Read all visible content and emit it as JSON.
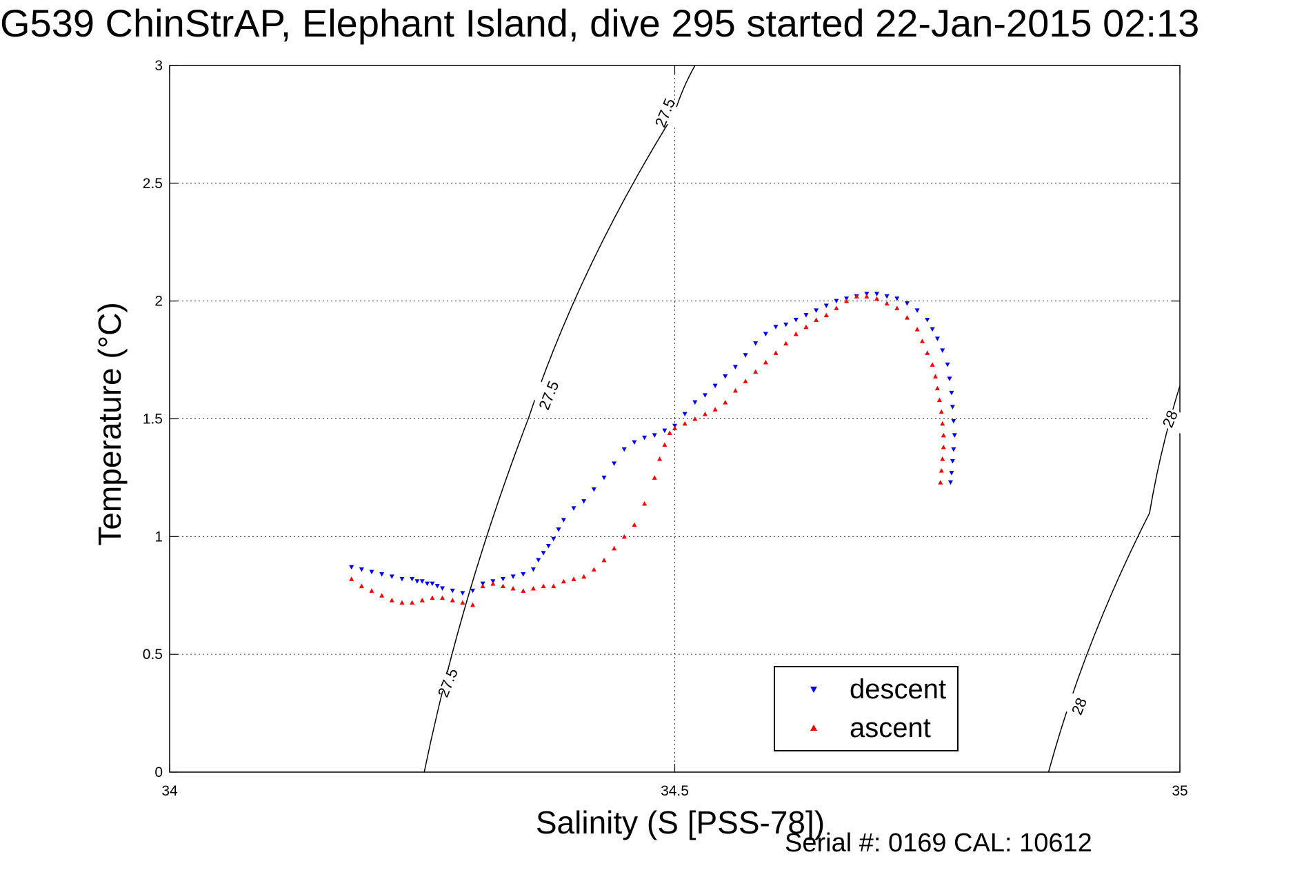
{
  "chart_data": {
    "type": "scatter",
    "title": "G539 ChinStrAP, Elephant Island, dive 295 started 22-Jan-2015 02:13",
    "xlabel": "Salinity (S [PSS-78])",
    "ylabel": "Temperature (°C)",
    "xlim": [
      34,
      35
    ],
    "ylim": [
      0,
      3
    ],
    "xticks": [
      "34",
      "34.5",
      "35"
    ],
    "yticks": [
      "0",
      "0.5",
      "1",
      "1.5",
      "2",
      "2.5",
      "3"
    ],
    "grid": true,
    "legend_position": "bottom-right",
    "footer": "Serial #: 0169 CAL: 10612",
    "series": [
      {
        "name": "descent",
        "color": "#0000ff",
        "marker": "down-triangle",
        "points": [
          [
            34.18,
            0.87
          ],
          [
            34.19,
            0.86
          ],
          [
            34.2,
            0.85
          ],
          [
            34.21,
            0.84
          ],
          [
            34.22,
            0.83
          ],
          [
            34.23,
            0.82
          ],
          [
            34.24,
            0.82
          ],
          [
            34.245,
            0.81
          ],
          [
            34.25,
            0.81
          ],
          [
            34.255,
            0.8
          ],
          [
            34.26,
            0.8
          ],
          [
            34.265,
            0.79
          ],
          [
            34.27,
            0.78
          ],
          [
            34.28,
            0.77
          ],
          [
            34.29,
            0.76
          ],
          [
            34.3,
            0.77
          ],
          [
            34.31,
            0.8
          ],
          [
            34.32,
            0.81
          ],
          [
            34.33,
            0.82
          ],
          [
            34.34,
            0.83
          ],
          [
            34.35,
            0.84
          ],
          [
            34.36,
            0.86
          ],
          [
            34.365,
            0.9
          ],
          [
            34.37,
            0.93
          ],
          [
            34.375,
            0.96
          ],
          [
            34.38,
            0.99
          ],
          [
            34.385,
            1.03
          ],
          [
            34.39,
            1.07
          ],
          [
            34.4,
            1.12
          ],
          [
            34.41,
            1.15
          ],
          [
            34.42,
            1.2
          ],
          [
            34.43,
            1.25
          ],
          [
            34.44,
            1.31
          ],
          [
            34.45,
            1.37
          ],
          [
            34.46,
            1.4
          ],
          [
            34.47,
            1.42
          ],
          [
            34.48,
            1.43
          ],
          [
            34.49,
            1.45
          ],
          [
            34.5,
            1.47
          ],
          [
            34.51,
            1.52
          ],
          [
            34.52,
            1.57
          ],
          [
            34.53,
            1.6
          ],
          [
            34.54,
            1.64
          ],
          [
            34.55,
            1.68
          ],
          [
            34.56,
            1.72
          ],
          [
            34.57,
            1.77
          ],
          [
            34.58,
            1.82
          ],
          [
            34.59,
            1.86
          ],
          [
            34.6,
            1.89
          ],
          [
            34.61,
            1.9
          ],
          [
            34.62,
            1.92
          ],
          [
            34.63,
            1.94
          ],
          [
            34.64,
            1.96
          ],
          [
            34.65,
            1.98
          ],
          [
            34.66,
            2.0
          ],
          [
            34.67,
            2.01
          ],
          [
            34.68,
            2.02
          ],
          [
            34.69,
            2.03
          ],
          [
            34.7,
            2.03
          ],
          [
            34.71,
            2.02
          ],
          [
            34.72,
            2.01
          ],
          [
            34.73,
            1.99
          ],
          [
            34.74,
            1.96
          ],
          [
            34.75,
            1.92
          ],
          [
            34.755,
            1.88
          ],
          [
            34.76,
            1.84
          ],
          [
            34.765,
            1.79
          ],
          [
            34.77,
            1.73
          ],
          [
            34.772,
            1.67
          ],
          [
            34.774,
            1.61
          ],
          [
            34.775,
            1.55
          ],
          [
            34.776,
            1.49
          ],
          [
            34.777,
            1.43
          ],
          [
            34.776,
            1.37
          ],
          [
            34.775,
            1.32
          ],
          [
            34.774,
            1.27
          ],
          [
            34.773,
            1.23
          ]
        ]
      },
      {
        "name": "ascent",
        "color": "#ff0000",
        "marker": "up-triangle",
        "points": [
          [
            34.18,
            0.82
          ],
          [
            34.19,
            0.79
          ],
          [
            34.2,
            0.77
          ],
          [
            34.21,
            0.75
          ],
          [
            34.22,
            0.73
          ],
          [
            34.23,
            0.72
          ],
          [
            34.24,
            0.72
          ],
          [
            34.25,
            0.73
          ],
          [
            34.26,
            0.74
          ],
          [
            34.27,
            0.74
          ],
          [
            34.28,
            0.73
          ],
          [
            34.29,
            0.72
          ],
          [
            34.3,
            0.71
          ],
          [
            34.31,
            0.79
          ],
          [
            34.32,
            0.8
          ],
          [
            34.33,
            0.79
          ],
          [
            34.34,
            0.78
          ],
          [
            34.35,
            0.77
          ],
          [
            34.36,
            0.78
          ],
          [
            34.37,
            0.79
          ],
          [
            34.38,
            0.79
          ],
          [
            34.39,
            0.81
          ],
          [
            34.4,
            0.82
          ],
          [
            34.41,
            0.83
          ],
          [
            34.42,
            0.86
          ],
          [
            34.43,
            0.9
          ],
          [
            34.44,
            0.95
          ],
          [
            34.45,
            1.0
          ],
          [
            34.46,
            1.05
          ],
          [
            34.47,
            1.14
          ],
          [
            34.48,
            1.25
          ],
          [
            34.485,
            1.33
          ],
          [
            34.49,
            1.39
          ],
          [
            34.495,
            1.44
          ],
          [
            34.5,
            1.46
          ],
          [
            34.51,
            1.48
          ],
          [
            34.52,
            1.5
          ],
          [
            34.53,
            1.52
          ],
          [
            34.54,
            1.54
          ],
          [
            34.55,
            1.57
          ],
          [
            34.56,
            1.62
          ],
          [
            34.57,
            1.66
          ],
          [
            34.58,
            1.7
          ],
          [
            34.59,
            1.74
          ],
          [
            34.6,
            1.78
          ],
          [
            34.61,
            1.82
          ],
          [
            34.62,
            1.86
          ],
          [
            34.63,
            1.89
          ],
          [
            34.64,
            1.92
          ],
          [
            34.65,
            1.94
          ],
          [
            34.66,
            1.97
          ],
          [
            34.67,
            2.0
          ],
          [
            34.68,
            2.02
          ],
          [
            34.69,
            2.02
          ],
          [
            34.7,
            2.01
          ],
          [
            34.71,
            1.99
          ],
          [
            34.72,
            1.97
          ],
          [
            34.73,
            1.93
          ],
          [
            34.74,
            1.88
          ],
          [
            34.745,
            1.83
          ],
          [
            34.75,
            1.78
          ],
          [
            34.755,
            1.73
          ],
          [
            34.758,
            1.68
          ],
          [
            34.76,
            1.63
          ],
          [
            34.762,
            1.58
          ],
          [
            34.764,
            1.53
          ],
          [
            34.765,
            1.48
          ],
          [
            34.766,
            1.43
          ],
          [
            34.766,
            1.38
          ],
          [
            34.765,
            1.33
          ],
          [
            34.764,
            1.28
          ],
          [
            34.763,
            1.23
          ]
        ]
      }
    ],
    "isopycnals": [
      {
        "label": "27.5",
        "points": [
          [
            34.252,
            0
          ],
          [
            34.355,
            1.5
          ],
          [
            34.5,
            2.8
          ],
          [
            34.52,
            3.0
          ]
        ],
        "label_at": [
          [
            34.275,
            0.38
          ],
          [
            34.375,
            1.6
          ],
          [
            34.49,
            2.8
          ]
        ]
      },
      {
        "label": "28",
        "points": [
          [
            34.87,
            0
          ],
          [
            34.97,
            1.1
          ],
          [
            35.0,
            1.64
          ]
        ],
        "label_at": [
          [
            34.9,
            0.28
          ],
          [
            34.99,
            1.5
          ]
        ]
      }
    ]
  }
}
